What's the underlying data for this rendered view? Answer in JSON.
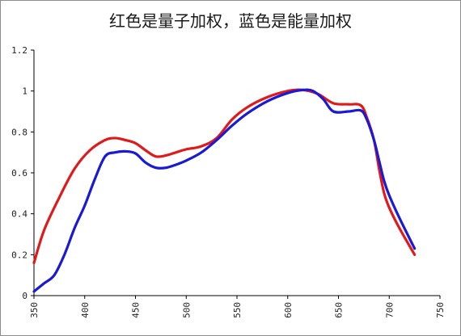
{
  "chart_data": {
    "type": "line",
    "title": "红色是量子加权，蓝色是能量加权",
    "xlabel": "",
    "ylabel": "",
    "xlim": [
      350,
      750
    ],
    "ylim": [
      0,
      1.2
    ],
    "xticks": [
      350,
      400,
      450,
      500,
      550,
      600,
      650,
      700,
      750
    ],
    "yticks": [
      0,
      0.2,
      0.4,
      0.6,
      0.8,
      1,
      1.2
    ],
    "ytick_labels": [
      "0",
      "0.2",
      "0.4",
      "0.6",
      "0.8",
      "1",
      "1.2"
    ],
    "grid": false,
    "legend": "none",
    "series": [
      {
        "color": "#e01a1a",
        "x": [
          350,
          360,
          375,
          390,
          405,
          420,
          430,
          440,
          450,
          460,
          470,
          480,
          490,
          500,
          515,
          530,
          545,
          560,
          580,
          600,
          615,
          630,
          645,
          660,
          672,
          678,
          685,
          690,
          695,
          700,
          710,
          725
        ],
        "y": [
          0.16,
          0.32,
          0.48,
          0.62,
          0.71,
          0.76,
          0.77,
          0.76,
          0.745,
          0.71,
          0.68,
          0.685,
          0.7,
          0.715,
          0.73,
          0.77,
          0.86,
          0.92,
          0.97,
          1.0,
          1.005,
          0.985,
          0.94,
          0.935,
          0.93,
          0.87,
          0.76,
          0.62,
          0.5,
          0.43,
          0.33,
          0.2
        ]
      },
      {
        "color": "#1a1ad6",
        "x": [
          350,
          360,
          370,
          380,
          390,
          400,
          410,
          420,
          430,
          440,
          450,
          460,
          470,
          480,
          490,
          500,
          515,
          530,
          545,
          560,
          580,
          600,
          615,
          625,
          635,
          645,
          660,
          672,
          678,
          685,
          690,
          695,
          700,
          710,
          725
        ],
        "y": [
          0.02,
          0.06,
          0.1,
          0.2,
          0.33,
          0.44,
          0.57,
          0.68,
          0.7,
          0.705,
          0.695,
          0.65,
          0.625,
          0.625,
          0.64,
          0.66,
          0.7,
          0.76,
          0.83,
          0.89,
          0.95,
          0.99,
          1.005,
          1.0,
          0.96,
          0.9,
          0.9,
          0.905,
          0.86,
          0.76,
          0.66,
          0.56,
          0.49,
          0.38,
          0.23
        ]
      }
    ]
  }
}
